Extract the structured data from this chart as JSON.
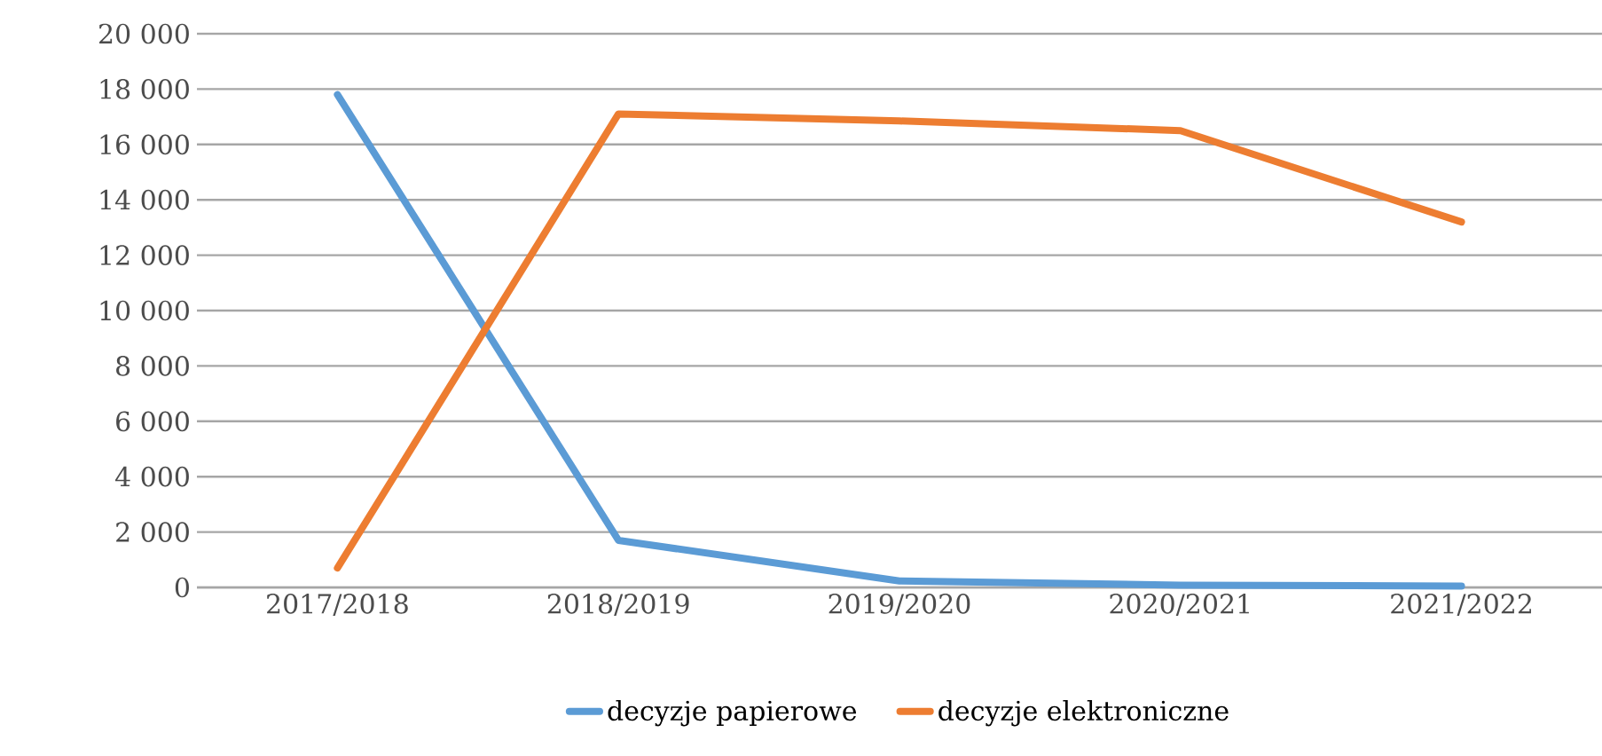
{
  "chart_data": {
    "type": "line",
    "categories": [
      "2017/2018",
      "2018/2019",
      "2019/2020",
      "2020/2021",
      "2021/2022"
    ],
    "series": [
      {
        "name": "decyzje papierowe",
        "color": "#5b9bd5",
        "values": [
          17800,
          1700,
          230,
          80,
          50
        ]
      },
      {
        "name": "decyzje elektroniczne",
        "color": "#ed7d31",
        "values": [
          700,
          17100,
          16850,
          16500,
          13200
        ]
      }
    ],
    "ylim": [
      0,
      20000
    ],
    "yticks": [
      {
        "value": 0,
        "label": "0"
      },
      {
        "value": 2000,
        "label": "2 000"
      },
      {
        "value": 4000,
        "label": "4 000"
      },
      {
        "value": 6000,
        "label": "6 000"
      },
      {
        "value": 8000,
        "label": "8 000"
      },
      {
        "value": 10000,
        "label": "10 000"
      },
      {
        "value": 12000,
        "label": "12 000"
      },
      {
        "value": 14000,
        "label": "14 000"
      },
      {
        "value": 16000,
        "label": "16 000"
      },
      {
        "value": 18000,
        "label": "18 000"
      },
      {
        "value": 20000,
        "label": "20 000"
      }
    ],
    "grid": "y",
    "legend": "bottom",
    "marker": "none",
    "line_style": "solid"
  }
}
